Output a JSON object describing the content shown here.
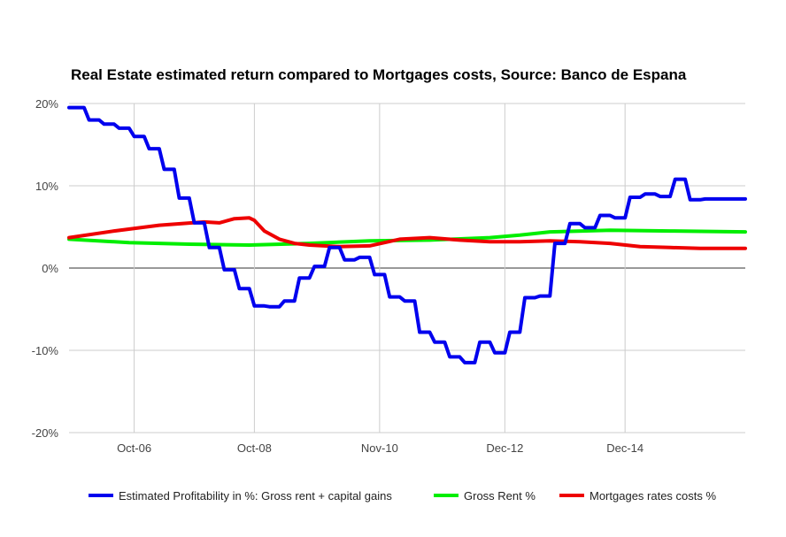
{
  "chart_data": {
    "type": "line",
    "title": "Real Estate estimated return compared to Mortgages costs, Source: Banco de Espana",
    "xlabel": "",
    "ylabel": "",
    "x_range": [
      "2005-09",
      "2016-12"
    ],
    "ylim": [
      -20,
      20
    ],
    "y_ticks": [
      20,
      10,
      0,
      -10,
      -20
    ],
    "y_tick_labels": [
      "20%",
      "10%",
      "0%",
      "-10%",
      "-20%"
    ],
    "x_ticks": [
      "2006-10",
      "2008-10",
      "2010-11",
      "2012-12",
      "2014-12"
    ],
    "x_tick_labels": [
      "Oct-06",
      "Oct-08",
      "Nov-10",
      "Dec-12",
      "Dec-14"
    ],
    "grid": true,
    "legend_position": "bottom",
    "series": [
      {
        "name": "Estimated Profitability in %: Gross rent + capital gains",
        "color": "#0000ee",
        "x": [
          "2005-09",
          "2005-12",
          "2006-01",
          "2006-03",
          "2006-04",
          "2006-06",
          "2006-07",
          "2006-09",
          "2006-10",
          "2006-12",
          "2007-01",
          "2007-03",
          "2007-04",
          "2007-06",
          "2007-07",
          "2007-09",
          "2007-10",
          "2007-12",
          "2008-01",
          "2008-03",
          "2008-04",
          "2008-06",
          "2008-07",
          "2008-09",
          "2008-10",
          "2008-12",
          "2009-01",
          "2009-03",
          "2009-04",
          "2009-06",
          "2009-07",
          "2009-09",
          "2009-10",
          "2009-12",
          "2010-01",
          "2010-03",
          "2010-04",
          "2010-06",
          "2010-07",
          "2010-09",
          "2010-10",
          "2010-12",
          "2011-01",
          "2011-03",
          "2011-04",
          "2011-06",
          "2011-07",
          "2011-09",
          "2011-10",
          "2011-12",
          "2012-01",
          "2012-03",
          "2012-04",
          "2012-06",
          "2012-07",
          "2012-09",
          "2012-10",
          "2012-12",
          "2013-01",
          "2013-03",
          "2013-04",
          "2013-06",
          "2013-07",
          "2013-09",
          "2013-10",
          "2013-12",
          "2014-01",
          "2014-03",
          "2014-04",
          "2014-06",
          "2014-07",
          "2014-09",
          "2014-10",
          "2014-12",
          "2015-01",
          "2015-03",
          "2015-04",
          "2015-06",
          "2015-07",
          "2015-09",
          "2015-10",
          "2015-12",
          "2016-01",
          "2016-03",
          "2016-04",
          "2016-06",
          "2016-07",
          "2016-09",
          "2016-10",
          "2016-12"
        ],
        "values": [
          19.5,
          19.5,
          18.0,
          18.0,
          17.5,
          17.5,
          17.0,
          17.0,
          16.0,
          16.0,
          14.5,
          14.5,
          12.0,
          12.0,
          8.5,
          8.5,
          5.5,
          5.5,
          2.5,
          2.5,
          -0.2,
          -0.2,
          -2.5,
          -2.5,
          -4.6,
          -4.6,
          -4.7,
          -4.7,
          -4.0,
          -4.0,
          -1.2,
          -1.2,
          0.2,
          0.2,
          2.5,
          2.5,
          1.0,
          1.0,
          1.3,
          1.3,
          -0.8,
          -0.8,
          -3.5,
          -3.5,
          -4.0,
          -4.0,
          -7.8,
          -7.8,
          -9.0,
          -9.0,
          -10.8,
          -10.8,
          -11.5,
          -11.5,
          -9.0,
          -9.0,
          -10.3,
          -10.3,
          -7.8,
          -7.8,
          -3.6,
          -3.6,
          -3.4,
          -3.4,
          3.0,
          3.0,
          5.4,
          5.4,
          4.9,
          4.9,
          6.4,
          6.4,
          6.1,
          6.1,
          8.6,
          8.6,
          9.0,
          9.0,
          8.7,
          8.7,
          10.8,
          10.8,
          8.3,
          8.3,
          8.4,
          8.4,
          8.4,
          8.4,
          8.4,
          8.4
        ]
      },
      {
        "name": "Gross Rent %",
        "color": "#00ee00",
        "x": [
          "2005-09",
          "2006-09",
          "2007-09",
          "2008-09",
          "2009-09",
          "2010-09",
          "2011-09",
          "2012-09",
          "2013-03",
          "2013-09",
          "2014-09",
          "2015-09",
          "2016-12"
        ],
        "values": [
          3.5,
          3.1,
          2.9,
          2.8,
          3.0,
          3.3,
          3.4,
          3.7,
          4.0,
          4.4,
          4.6,
          4.5,
          4.4
        ]
      },
      {
        "name": "Mortgages rates costs %",
        "color": "#ee0000",
        "x": [
          "2005-09",
          "2006-06",
          "2007-03",
          "2007-12",
          "2008-03",
          "2008-06",
          "2008-09",
          "2008-10",
          "2008-12",
          "2009-03",
          "2009-06",
          "2009-09",
          "2010-03",
          "2010-09",
          "2011-03",
          "2011-09",
          "2012-03",
          "2012-09",
          "2013-03",
          "2013-09",
          "2014-03",
          "2014-09",
          "2015-03",
          "2015-09",
          "2016-03",
          "2016-12"
        ],
        "values": [
          3.7,
          4.5,
          5.2,
          5.6,
          5.5,
          6.0,
          6.1,
          5.8,
          4.5,
          3.5,
          3.0,
          2.8,
          2.6,
          2.7,
          3.5,
          3.7,
          3.4,
          3.2,
          3.2,
          3.3,
          3.2,
          3.0,
          2.6,
          2.5,
          2.4,
          2.4
        ]
      }
    ]
  }
}
